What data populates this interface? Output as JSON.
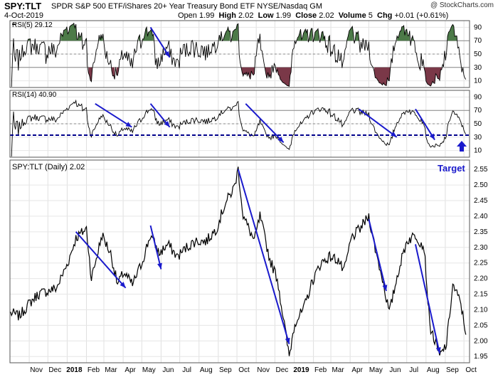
{
  "header": {
    "symbol": "SPY:TLT",
    "description": "SPDR S&P 500 ETF/iShares 20+ Year Treasury Bond ETF  NYSE/Nasdaq GM",
    "date": "4-Oct-2019",
    "open_label": "Open",
    "open": "1.99",
    "high_label": "High",
    "high": "2.02",
    "low_label": "Low",
    "low": "1.99",
    "close_label": "Close",
    "close": "2.02",
    "volume_label": "Volume",
    "volume": "5",
    "chg_label": "Chg",
    "chg": "+0.01 (+0.61%)",
    "watermark": "@ StockCharts.com"
  },
  "colors": {
    "price": "#000000",
    "arrow": "#1a1acc",
    "overbought_fill": "#4c7a48",
    "oversold_fill": "#7a3848",
    "guide": "#888888",
    "target_line": "#00008b"
  },
  "chart_data": [
    {
      "type": "line",
      "title": "RSI(5) 29.12",
      "ylim": [
        0,
        100
      ],
      "yticks": [
        10,
        30,
        50,
        70,
        90
      ],
      "guides": [
        30,
        50,
        70
      ],
      "last": 29.12,
      "arrows": [
        {
          "from": [
            "May 2018",
            90
          ],
          "to": [
            "Jun 2018",
            45
          ]
        }
      ]
    },
    {
      "type": "line",
      "title": "RSI(14) 40.90",
      "ylim": [
        0,
        100
      ],
      "yticks": [
        10,
        30,
        50,
        70,
        90
      ],
      "guides": [
        50,
        70
      ],
      "target_level": 33,
      "target_label": "Target",
      "last": 40.9,
      "arrows": [
        {
          "from": [
            "Feb 2018",
            80
          ],
          "to": [
            "Apr 2018",
            45
          ]
        },
        {
          "from": [
            "May 2018",
            80
          ],
          "to": [
            "Jun 2018",
            45
          ]
        },
        {
          "from": [
            "Oct 2018",
            80
          ],
          "to": [
            "Dec 2018",
            22
          ]
        },
        {
          "from": [
            "Apr 2019",
            72
          ],
          "to": [
            "Jun 2019",
            30
          ]
        },
        {
          "from": [
            "Jul 2019",
            72
          ],
          "to": [
            "Aug 2019",
            26
          ]
        }
      ]
    },
    {
      "type": "line",
      "title": "SPY:TLT (Daily) 2.02",
      "ylim": [
        1.93,
        2.58
      ],
      "yticks": [
        1.95,
        2.0,
        2.05,
        2.1,
        2.15,
        2.2,
        2.25,
        2.3,
        2.35,
        2.4,
        2.45,
        2.5,
        2.55
      ],
      "x_labels": [
        "Nov",
        "Dec",
        "2018",
        "Feb",
        "Mar",
        "Apr",
        "May",
        "Jun",
        "Jul",
        "Aug",
        "Sep",
        "Oct",
        "Nov",
        "Dec",
        "2019",
        "Feb",
        "Mar",
        "Apr",
        "May",
        "Jun",
        "Jul",
        "Aug",
        "Sep",
        "Oct"
      ],
      "series": [
        {
          "x": [
            "2017-10-02",
            "2017-10-16",
            "2017-11-01",
            "2017-11-15",
            "2017-12-01",
            "2017-12-15",
            "2018-01-02",
            "2018-01-15",
            "2018-02-01",
            "2018-02-09",
            "2018-02-26",
            "2018-03-12",
            "2018-03-23",
            "2018-04-02",
            "2018-04-16",
            "2018-05-01",
            "2018-05-15",
            "2018-05-29",
            "2018-06-12",
            "2018-06-27",
            "2018-07-12",
            "2018-07-26",
            "2018-08-13",
            "2018-08-29",
            "2018-09-12",
            "2018-09-26",
            "2018-10-03",
            "2018-10-11",
            "2018-10-29",
            "2018-11-07",
            "2018-11-23",
            "2018-12-05",
            "2018-12-24",
            "2019-01-02",
            "2019-01-16",
            "2019-01-30",
            "2019-02-13",
            "2019-02-27",
            "2019-03-13",
            "2019-03-22",
            "2019-04-03",
            "2019-04-17",
            "2019-05-01",
            "2019-05-13",
            "2019-05-23",
            "2019-06-03",
            "2019-06-17",
            "2019-07-01",
            "2019-07-15",
            "2019-07-29",
            "2019-08-07",
            "2019-08-23",
            "2019-09-03",
            "2019-09-13",
            "2019-09-26",
            "2019-10-04"
          ],
          "values": [
            2.09,
            2.08,
            2.12,
            2.15,
            2.16,
            2.17,
            2.25,
            2.33,
            2.36,
            2.2,
            2.34,
            2.28,
            2.18,
            2.22,
            2.18,
            2.25,
            2.34,
            2.28,
            2.31,
            2.27,
            2.3,
            2.32,
            2.32,
            2.36,
            2.44,
            2.49,
            2.55,
            2.4,
            2.32,
            2.4,
            2.26,
            2.2,
            1.95,
            2.06,
            2.1,
            2.19,
            2.25,
            2.27,
            2.26,
            2.22,
            2.33,
            2.36,
            2.4,
            2.28,
            2.2,
            2.09,
            2.22,
            2.32,
            2.34,
            2.3,
            2.05,
            1.95,
            1.99,
            2.18,
            2.12,
            2.02
          ]
        }
      ],
      "arrows": [
        {
          "from": [
            "2018-01-15",
            2.35
          ],
          "to": [
            "2018-04-05",
            2.17
          ]
        },
        {
          "from": [
            "2018-05-15",
            2.37
          ],
          "to": [
            "2018-06-01",
            2.23
          ]
        },
        {
          "from": [
            "2018-10-03",
            2.55
          ],
          "to": [
            "2018-12-24",
            1.99
          ]
        },
        {
          "from": [
            "2019-05-01",
            2.39
          ],
          "to": [
            "2019-05-29",
            2.16
          ]
        },
        {
          "from": [
            "2019-07-15",
            2.31
          ],
          "to": [
            "2019-08-23",
            1.96
          ]
        }
      ]
    }
  ]
}
